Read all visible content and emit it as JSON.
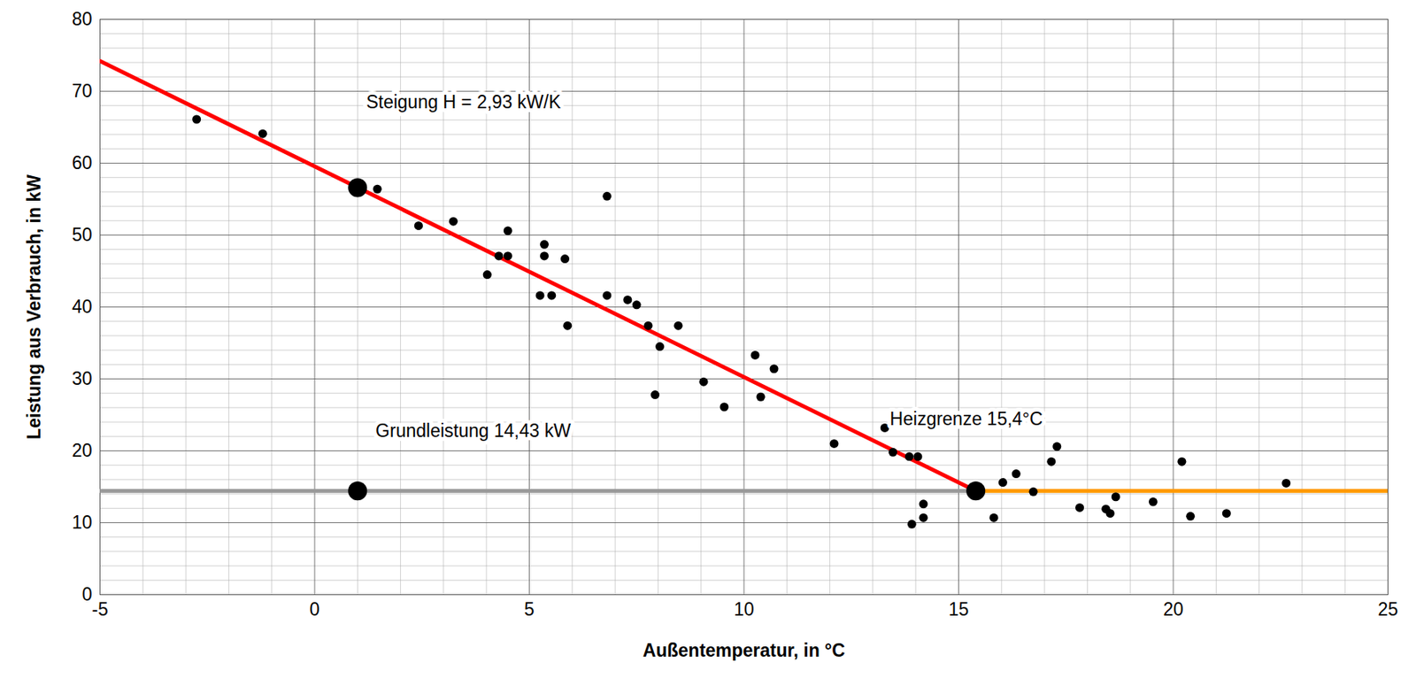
{
  "chart_data": {
    "type": "scatter",
    "xlabel": "Außentemperatur, in °C",
    "ylabel": "Leistung aus Verbrauch, in kW",
    "xlim": [
      -5,
      25
    ],
    "xticks": [
      -5,
      0,
      5,
      10,
      15,
      20,
      25
    ],
    "ylim": [
      0,
      80
    ],
    "yticks": [
      0,
      10,
      20,
      30,
      40,
      50,
      60,
      70,
      80
    ],
    "grid": true,
    "marker": "circle",
    "color": "#000000",
    "x": [
      -2.75,
      -1.21,
      1.46,
      2.42,
      3.23,
      4.02,
      4.29,
      4.5,
      4.5,
      5.35,
      5.35,
      5.25,
      5.52,
      5.83,
      5.89,
      6.81,
      6.81,
      7.29,
      7.5,
      7.77,
      8.04,
      8.47,
      7.93,
      9.06,
      9.54,
      10.26,
      10.39,
      10.7,
      12.1,
      13.28,
      13.47,
      13.85,
      14.05,
      13.91,
      14.18,
      14.18,
      16.03,
      16.34,
      15.82,
      16.74,
      17.16,
      17.29,
      17.82,
      18.43,
      18.53,
      18.66,
      19.53,
      20.2,
      20.4,
      21.24,
      22.63
    ],
    "values": [
      66.1,
      64.1,
      56.4,
      51.3,
      51.9,
      44.5,
      47.1,
      47.1,
      50.6,
      48.7,
      47.1,
      41.6,
      41.6,
      46.7,
      37.4,
      55.4,
      41.6,
      41.0,
      40.3,
      37.4,
      34.5,
      37.4,
      27.8,
      29.6,
      26.1,
      33.3,
      27.5,
      31.4,
      21.0,
      23.2,
      19.8,
      19.2,
      19.2,
      9.8,
      12.6,
      10.7,
      15.6,
      16.8,
      10.7,
      14.3,
      18.5,
      20.6,
      12.1,
      11.9,
      11.3,
      13.6,
      12.9,
      18.5,
      10.9,
      11.3,
      15.5
    ],
    "lines": [
      {
        "color": "#999999",
        "line_style": "solid",
        "x": [
          -5,
          15.4
        ],
        "values": [
          14.43,
          14.43
        ]
      },
      {
        "color": "#ff9900",
        "line_style": "solid",
        "x": [
          15.4,
          25
        ],
        "values": [
          14.43,
          14.43
        ]
      },
      {
        "color": "#ff0000",
        "line_style": "solid",
        "x": [
          -5,
          15.4
        ],
        "values": [
          74.2,
          14.43
        ]
      }
    ],
    "highlight_points": {
      "color": "#000000",
      "marker": "circle",
      "x": [
        1,
        1,
        15.4
      ],
      "values": [
        56.6,
        14.43,
        14.43
      ]
    },
    "annotations": [
      {
        "text": "Steigung H = 2,93 kW/K",
        "x": 1.2,
        "y": 68.5
      },
      {
        "text": "Grundleistung 14,43 kW",
        "x": 1.42,
        "y": 22.7
      },
      {
        "text": "Heizgrenze 15,4°C",
        "x": 13.4,
        "y": 24.4
      }
    ]
  }
}
